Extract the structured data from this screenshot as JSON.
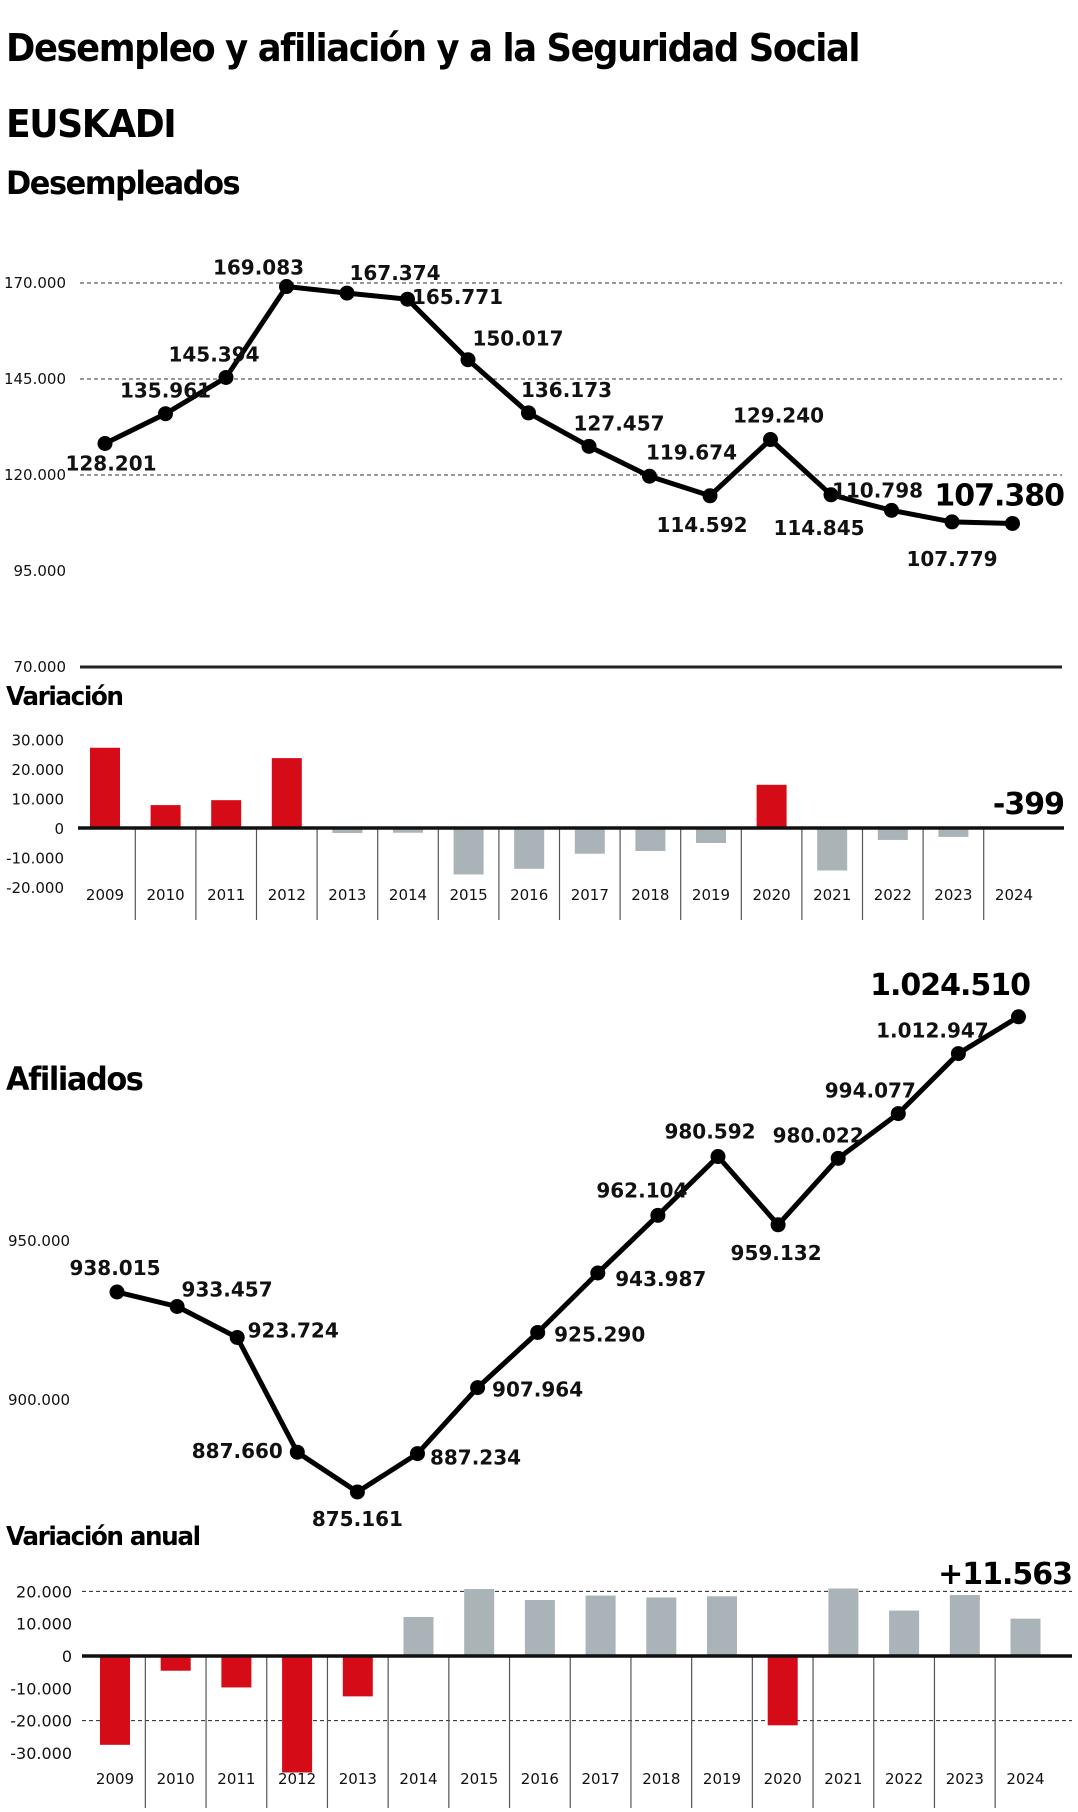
{
  "header": {
    "title": "Desempleo y afiliación y a la Seguridad Social",
    "region": "EUSKADI"
  },
  "colors": {
    "positive_bad": "#d50b17",
    "neutral": "#a9b3b8",
    "line": "#000000"
  },
  "chart_data": [
    {
      "id": "desempleados",
      "type": "line",
      "title": "Desempleados",
      "categories": [
        "2009",
        "2010",
        "2011",
        "2012",
        "2013",
        "2014",
        "2015",
        "2016",
        "2017",
        "2018",
        "2019",
        "2020",
        "2021",
        "2022",
        "2023",
        "2024"
      ],
      "values": [
        128201,
        135961,
        145394,
        169083,
        167374,
        165771,
        150017,
        136173,
        127457,
        119674,
        114592,
        129240,
        114845,
        110798,
        107779,
        107380
      ],
      "data_labels": [
        "128.201",
        "135.961",
        "145.394",
        "169.083",
        "167.374",
        "165.771",
        "150.017",
        "136.173",
        "127.457",
        "119.674",
        "114.592",
        "129.240",
        "114.845",
        "110.798",
        "107.779",
        "107.380"
      ],
      "highlight_label": "107.380",
      "yticks": [
        170000,
        145000,
        120000,
        95000,
        70000
      ],
      "ytick_labels": [
        "170.000",
        "145.000",
        "120.000",
        "95.000",
        "70.000"
      ],
      "ylim": [
        70000,
        170000
      ],
      "grid": "dashed horizontal at 120.000, 145.000, 170.000"
    },
    {
      "id": "variacion-desempleados",
      "type": "bar",
      "title": "Variación",
      "categories": [
        "2009",
        "2010",
        "2011",
        "2012",
        "2013",
        "2014",
        "2015",
        "2016",
        "2017",
        "2018",
        "2019",
        "2020",
        "2021",
        "2022",
        "2023",
        "2024"
      ],
      "values": [
        27200,
        7760,
        9433,
        23689,
        -1709,
        -1603,
        -15754,
        -13844,
        -8716,
        -7783,
        -5082,
        14648,
        -14395,
        -4047,
        -3019,
        -399
      ],
      "highlight_label": "-399",
      "yticks": [
        30000,
        20000,
        10000,
        0,
        -10000,
        -20000
      ],
      "ytick_labels": [
        "30.000",
        "20.000",
        "10.000",
        "0",
        "-10.000",
        "-20.000"
      ],
      "ylim": [
        -20000,
        30000
      ],
      "color_rule": "positive = red, negative = gray"
    },
    {
      "id": "afiliados",
      "type": "line",
      "title": "Afiliados",
      "categories": [
        "2009",
        "2010",
        "2011",
        "2012",
        "2013",
        "2014",
        "2015",
        "2016",
        "2017",
        "2018",
        "2019",
        "2020",
        "2021",
        "2022",
        "2023",
        "2024"
      ],
      "values": [
        938015,
        933457,
        923724,
        887660,
        875161,
        887234,
        907964,
        925290,
        943987,
        962104,
        980592,
        959132,
        980022,
        994077,
        1012947,
        1024510
      ],
      "data_labels": [
        "938.015",
        "933.457",
        "923.724",
        "887.660",
        "875.161",
        "887.234",
        "907.964",
        "925.290",
        "943.987",
        "962.104",
        "980.592",
        "959.132",
        "980.022",
        "994.077",
        "1.012.947",
        "1.024.510"
      ],
      "highlight_label": "1.024.510",
      "yticks": [
        950000,
        900000
      ],
      "ytick_labels": [
        "950.000",
        "900.000"
      ],
      "grid": "none"
    },
    {
      "id": "variacion-afiliados",
      "type": "bar",
      "title": "Variación anual",
      "categories": [
        "2009",
        "2010",
        "2011",
        "2012",
        "2013",
        "2014",
        "2015",
        "2016",
        "2017",
        "2018",
        "2019",
        "2020",
        "2021",
        "2022",
        "2023",
        "2024"
      ],
      "values": [
        -27500,
        -4558,
        -9733,
        -36064,
        -12499,
        12073,
        20730,
        17326,
        18697,
        18117,
        18488,
        -21460,
        20890,
        14055,
        18870,
        11563
      ],
      "highlight_label": "+11.563",
      "yticks": [
        20000,
        10000,
        0,
        -10000,
        -20000,
        -30000
      ],
      "ytick_labels": [
        "20.000",
        "10.000",
        "0",
        "-10.000",
        "-20.000",
        "-30.000"
      ],
      "ylim": [
        -36000,
        22000
      ],
      "grid": "dashed horizontal at 20.000 and -20.000",
      "color_rule": "negative = red, positive = gray"
    }
  ]
}
